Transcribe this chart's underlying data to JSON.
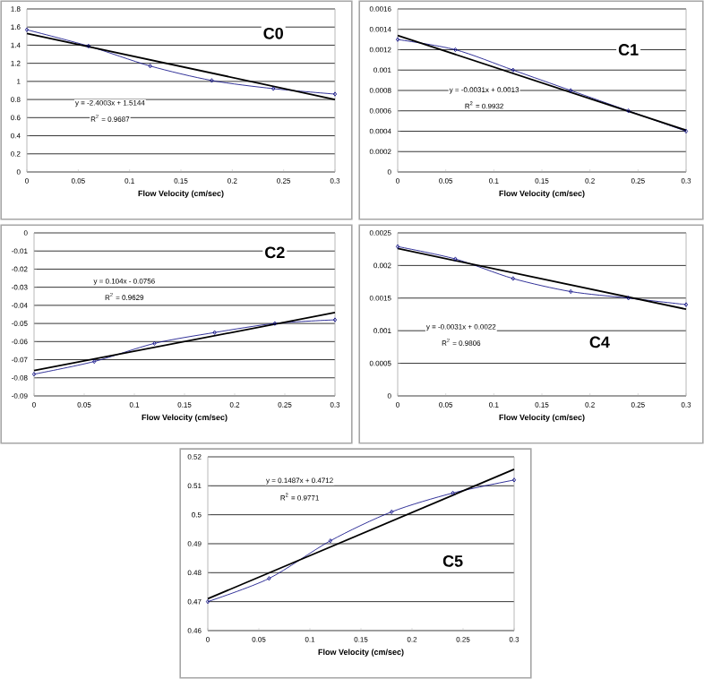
{
  "chart_data": [
    {
      "type": "line",
      "title": "C0",
      "xlabel": "Flow Velocity (cm/sec)",
      "xlim": [
        0,
        0.3
      ],
      "xticks": [
        0,
        0.05,
        0.1,
        0.15,
        0.2,
        0.25,
        0.3
      ],
      "ylim": [
        0,
        1.8
      ],
      "yticks": [
        0,
        0.2,
        0.4,
        0.6,
        0.8,
        1,
        1.2,
        1.4,
        1.6,
        1.8
      ],
      "grid": "y",
      "line_style": "solid",
      "annotations": [
        "y = -2.4003x + 1.5144",
        "R$^{2}$ = 0.9687"
      ],
      "series": [
        {
          "x": [
            0,
            0.06,
            0.12,
            0.18,
            0.24,
            0.3
          ],
          "values": [
            1.57,
            1.39,
            1.17,
            1.01,
            0.92,
            0.86
          ],
          "color": "#000080",
          "marker": "diamond"
        },
        {
          "x": [
            0,
            0.3
          ],
          "values": [
            1.53,
            0.8
          ],
          "color": "#000000",
          "marker": "none"
        }
      ]
    },
    {
      "type": "line",
      "title": "C1",
      "xlabel": "Flow Velocity (cm/sec)",
      "xlim": [
        0,
        0.3
      ],
      "xticks": [
        0,
        0.05,
        0.1,
        0.15,
        0.2,
        0.25,
        0.3
      ],
      "ylim": [
        0,
        0.0016
      ],
      "yticks": [
        0,
        0.0002,
        0.0004,
        0.0006,
        0.0008,
        0.001,
        0.0012,
        0.0014,
        0.0016
      ],
      "grid": "y",
      "line_style": "solid",
      "annotations": [
        "y = -0.0031x + 0.0013",
        "R$^{2}$ = 0.9932"
      ],
      "series": [
        {
          "x": [
            0,
            0.06,
            0.12,
            0.18,
            0.24,
            0.3
          ],
          "values": [
            0.0013,
            0.0012,
            0.001,
            0.0008,
            0.0006,
            0.0004
          ],
          "color": "#000080",
          "marker": "diamond"
        },
        {
          "x": [
            0,
            0.3
          ],
          "values": [
            0.00134,
            0.00041
          ],
          "color": "#000000",
          "marker": "none"
        }
      ]
    },
    {
      "type": "line",
      "title": "C2",
      "xlabel": "Flow Velocity (cm/sec)",
      "xlim": [
        0,
        0.3
      ],
      "xticks": [
        0,
        0.05,
        0.1,
        0.15,
        0.2,
        0.25,
        0.3
      ],
      "ylim": [
        -0.09,
        0
      ],
      "yticks": [
        -0.09,
        -0.08,
        -0.07,
        -0.06,
        -0.05,
        -0.04,
        -0.03,
        -0.02,
        -0.01,
        0
      ],
      "grid": "y",
      "line_style": "solid",
      "annotations": [
        "y = 0.104x - 0.0756",
        "R$^{2}$ = 0.9629"
      ],
      "series": [
        {
          "x": [
            0,
            0.06,
            0.12,
            0.18,
            0.24,
            0.3
          ],
          "values": [
            -0.078,
            -0.071,
            -0.061,
            -0.055,
            -0.05,
            -0.048
          ],
          "color": "#000080",
          "marker": "diamond"
        },
        {
          "x": [
            0,
            0.3
          ],
          "values": [
            -0.076,
            -0.044
          ],
          "color": "#000000",
          "marker": "none"
        }
      ]
    },
    {
      "type": "line",
      "title": "C4",
      "xlabel": "Flow Velocity (cm/sec)",
      "xlim": [
        0,
        0.3
      ],
      "xticks": [
        0,
        0.05,
        0.1,
        0.15,
        0.2,
        0.25,
        0.3
      ],
      "ylim": [
        0,
        0.0025
      ],
      "yticks": [
        0,
        0.0005,
        0.001,
        0.0015,
        0.002,
        0.0025
      ],
      "grid": "y",
      "line_style": "solid",
      "annotations": [
        "y = -0.0031x + 0.0022",
        "R$^{2}$ = 0.9806"
      ],
      "series": [
        {
          "x": [
            0,
            0.06,
            0.12,
            0.18,
            0.24,
            0.3
          ],
          "values": [
            0.00229,
            0.0021,
            0.0018,
            0.0016,
            0.0015,
            0.0014
          ],
          "color": "#000080",
          "marker": "diamond"
        },
        {
          "x": [
            0,
            0.3
          ],
          "values": [
            0.00226,
            0.00133
          ],
          "color": "#000000",
          "marker": "none"
        }
      ]
    },
    {
      "type": "line",
      "title": "C5",
      "xlabel": "Flow Velocity (cm/sec)",
      "xlim": [
        0,
        0.3
      ],
      "xticks": [
        0,
        0.05,
        0.1,
        0.15,
        0.2,
        0.25,
        0.3
      ],
      "ylim": [
        0.46,
        0.52
      ],
      "yticks": [
        0.46,
        0.47,
        0.48,
        0.49,
        0.5,
        0.51,
        0.52
      ],
      "grid": "y",
      "line_style": "solid",
      "annotations": [
        "y = 0.1487x + 0.4712",
        "R$^{2}$ = 0.9771"
      ],
      "series": [
        {
          "x": [
            0,
            0.06,
            0.12,
            0.18,
            0.24,
            0.3
          ],
          "values": [
            0.47,
            0.478,
            0.491,
            0.501,
            0.5075,
            0.512
          ],
          "color": "#000080",
          "marker": "diamond"
        },
        {
          "x": [
            0,
            0.3
          ],
          "values": [
            0.471,
            0.5157
          ],
          "color": "#000000",
          "marker": "none"
        }
      ]
    }
  ]
}
